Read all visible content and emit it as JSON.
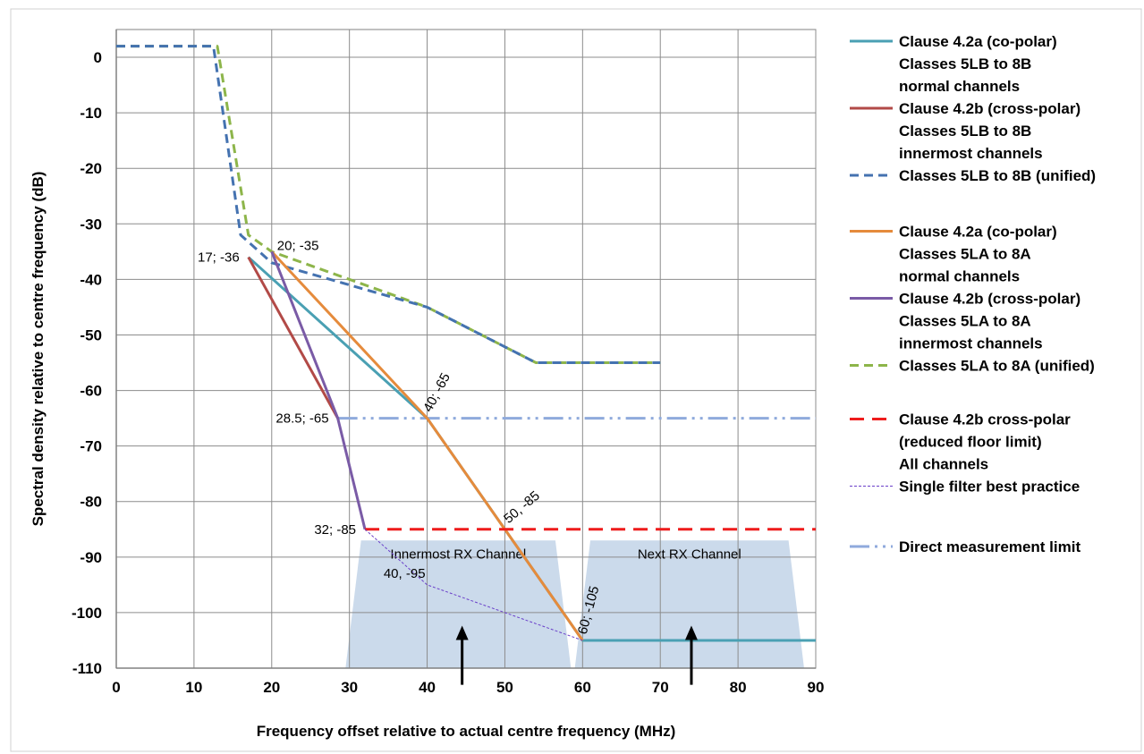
{
  "chart_data": {
    "type": "line",
    "xlabel": "Frequency offset relative to actual centre frequency (MHz)",
    "ylabel": "Spectral density relative to centre frequency (dB)",
    "xlim": [
      0,
      90
    ],
    "ylim": [
      -110,
      5
    ],
    "x_ticks": [
      0,
      10,
      20,
      30,
      40,
      50,
      60,
      70,
      80,
      90
    ],
    "y_ticks": [
      0,
      -10,
      -20,
      -30,
      -40,
      -50,
      -60,
      -70,
      -80,
      -90,
      -100,
      -110
    ],
    "grid": true,
    "legend_position": "right",
    "colors": {
      "teal": "#4aa0b3",
      "darkred": "#b24a47",
      "blue_dash": "#4472b0",
      "orange": "#e58b3c",
      "purple": "#7a5ba6",
      "green_dash": "#8db54a",
      "red_dash": "#ee1c1c",
      "thin_purple": "#6a3fc9",
      "light_blue": "#8faadc",
      "band_fill": "#b9cde4"
    },
    "series": [
      {
        "id": "s1",
        "name": "Clause 4.2a (co-polar)\nClasses 5LB to 8B\nnormal channels",
        "color": "#4aa0b3",
        "width": 3,
        "dash": "",
        "x": [
          17,
          40,
          60,
          90
        ],
        "y": [
          -36,
          -65,
          -105,
          -105
        ]
      },
      {
        "id": "s2",
        "name": "Clause 4.2b (cross-polar)\nClasses 5LB to 8B\ninnermost channels",
        "color": "#b24a47",
        "width": 3,
        "dash": "",
        "x": [
          17,
          28.5
        ],
        "y": [
          -36,
          -65
        ]
      },
      {
        "id": "s3",
        "name": "Classes 5LB to 8B (unified)",
        "color": "#4472b0",
        "width": 3,
        "dash": "10,6",
        "x": [
          0,
          12.5,
          16,
          20,
          30,
          40,
          54,
          70
        ],
        "y": [
          2,
          2,
          -32,
          -37,
          -41,
          -45,
          -55,
          -55
        ]
      },
      {
        "id": "s4",
        "name": "Clause 4.2a (co-polar)\nClasses 5LA to 8A\nnormal channels",
        "color": "#e58b3c",
        "width": 3,
        "dash": "",
        "x": [
          20,
          40,
          60
        ],
        "y": [
          -35,
          -65,
          -105
        ]
      },
      {
        "id": "s5",
        "name": "Clause 4.2b (cross-polar)\nClasses 5LA to 8A\ninnermost channels",
        "color": "#7a5ba6",
        "width": 3,
        "dash": "",
        "x": [
          20,
          28.5,
          32
        ],
        "y": [
          -35,
          -65,
          -85
        ]
      },
      {
        "id": "s6",
        "name": "Classes 5LA to 8A (unified)",
        "color": "#8db54a",
        "width": 3,
        "dash": "10,6",
        "x": [
          0,
          13,
          17,
          20,
          30,
          40,
          54,
          70
        ],
        "y": [
          2,
          2,
          -32,
          -35,
          -40,
          -45,
          -55,
          -55
        ]
      },
      {
        "id": "s7",
        "name": "Clause 4.2b cross-polar\n(reduced floor limit)\nAll channels",
        "color": "#ee1c1c",
        "width": 3,
        "dash": "16,9",
        "x": [
          32,
          90
        ],
        "y": [
          -85,
          -85
        ]
      },
      {
        "id": "s8",
        "name": "Single filter best practice",
        "color": "#6a3fc9",
        "width": 1,
        "dash": "3,2",
        "x": [
          32,
          40,
          60
        ],
        "y": [
          -85,
          -95,
          -105
        ]
      },
      {
        "id": "s9",
        "name": "Direct measurement limit",
        "color": "#8faadc",
        "width": 3,
        "dash": "22,6,3,6,3,6",
        "x": [
          28.5,
          90
        ],
        "y": [
          -65,
          -65
        ]
      }
    ],
    "bands": [
      {
        "label": "Innermost RX Channel",
        "x": [
          29.5,
          31.5,
          56.5,
          58.5
        ],
        "y": [
          -110,
          -87,
          -87,
          -110
        ]
      },
      {
        "label": "Next RX Channel",
        "x": [
          59,
          61,
          86.5,
          88.5
        ],
        "y": [
          -110,
          -87,
          -87,
          -110
        ]
      }
    ],
    "arrows": [
      {
        "x": 44.5,
        "y_from": -113,
        "y_to": -103
      },
      {
        "x": 74,
        "y_from": -113,
        "y_to": -103
      }
    ],
    "annotations": [
      {
        "text": "17; -36",
        "x": 17,
        "y": -36,
        "anchor": "right",
        "rotate": 0
      },
      {
        "text": "20; -35",
        "x": 20,
        "y": -35,
        "anchor": "left",
        "rotate": 0
      },
      {
        "text": "28.5; -65",
        "x": 28.5,
        "y": -65,
        "anchor": "right",
        "rotate": 0
      },
      {
        "text": "40; -65",
        "x": 40,
        "y": -65,
        "anchor": "rot",
        "rotate": -62
      },
      {
        "text": "50, -85",
        "x": 50,
        "y": -85,
        "anchor": "rot",
        "rotate": -40
      },
      {
        "text": "32; -85",
        "x": 32,
        "y": -85,
        "anchor": "right",
        "rotate": 0
      },
      {
        "text": "40, -95",
        "x": 40,
        "y": -95,
        "anchor": "below-left",
        "rotate": 0
      },
      {
        "text": "60; -105",
        "x": 60,
        "y": -105,
        "anchor": "rot",
        "rotate": -75
      }
    ],
    "legend_layout": [
      {
        "series": "s1",
        "row": 0
      },
      {
        "series": "s2",
        "row": 3
      },
      {
        "series": "s3",
        "row": 6
      },
      {
        "series": "s4",
        "row": 8.5
      },
      {
        "series": "s5",
        "row": 11.5
      },
      {
        "series": "s6",
        "row": 14.5
      },
      {
        "series": "s7",
        "row": 16.9
      },
      {
        "series": "s8",
        "row": 19.9
      },
      {
        "series": "s9",
        "row": 22.6
      }
    ]
  }
}
